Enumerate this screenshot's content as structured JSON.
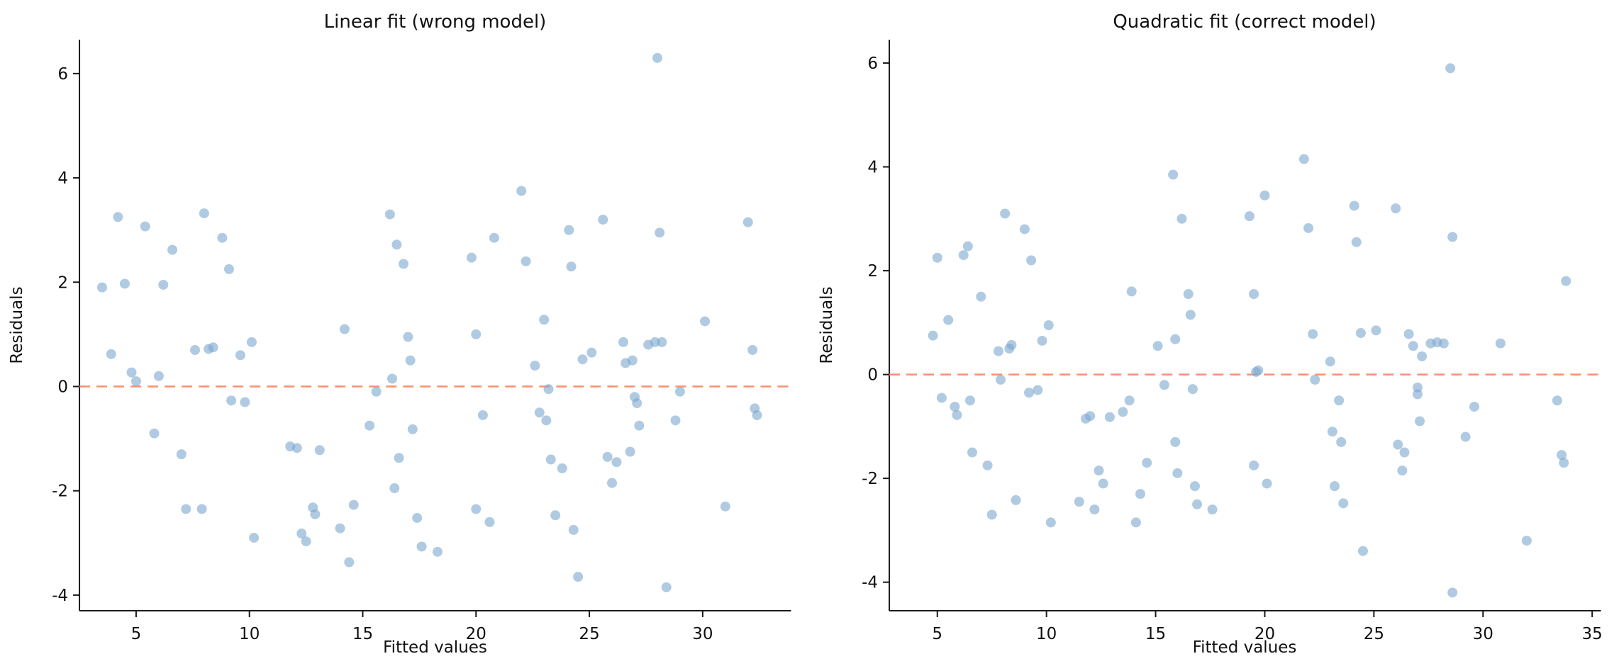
{
  "colors": {
    "background": "#ffffff",
    "point_fill": "#7ba6ce",
    "point_opacity": 0.6,
    "refline": "#fb8f6e",
    "spine": "#1a1a1a",
    "text": "#111111"
  },
  "chart_data": [
    {
      "type": "scatter",
      "title": "Linear fit (wrong model)",
      "xlabel": "Fitted values",
      "ylabel": "Residuals",
      "xlim": [
        2.5,
        33.9
      ],
      "ylim": [
        -4.3,
        6.65
      ],
      "xticks": [
        5,
        10,
        15,
        20,
        25,
        30
      ],
      "yticks": [
        -4,
        -2,
        0,
        2,
        4,
        6
      ],
      "refline_y": 0,
      "legend": null,
      "grid": false,
      "points": [
        [
          3.5,
          1.9
        ],
        [
          3.9,
          0.62
        ],
        [
          4.2,
          3.25
        ],
        [
          4.5,
          1.97
        ],
        [
          4.8,
          0.27
        ],
        [
          5.0,
          0.1
        ],
        [
          5.4,
          3.07
        ],
        [
          5.8,
          -0.9
        ],
        [
          6.0,
          0.2
        ],
        [
          6.2,
          1.95
        ],
        [
          6.6,
          2.62
        ],
        [
          7.0,
          -1.3
        ],
        [
          7.2,
          -2.35
        ],
        [
          7.6,
          0.7
        ],
        [
          7.9,
          -2.35
        ],
        [
          8.0,
          3.32
        ],
        [
          8.2,
          0.72
        ],
        [
          8.4,
          0.75
        ],
        [
          8.8,
          2.85
        ],
        [
          9.1,
          2.25
        ],
        [
          9.2,
          -0.27
        ],
        [
          9.6,
          0.6
        ],
        [
          9.8,
          -0.3
        ],
        [
          10.1,
          0.85
        ],
        [
          10.2,
          -2.9
        ],
        [
          11.8,
          -1.15
        ],
        [
          12.1,
          -1.18
        ],
        [
          12.3,
          -2.82
        ],
        [
          12.5,
          -2.97
        ],
        [
          12.8,
          -2.32
        ],
        [
          12.9,
          -2.45
        ],
        [
          13.1,
          -1.22
        ],
        [
          14.0,
          -2.72
        ],
        [
          14.2,
          1.1
        ],
        [
          14.4,
          -3.37
        ],
        [
          14.6,
          -2.27
        ],
        [
          15.3,
          -0.75
        ],
        [
          15.6,
          -0.1
        ],
        [
          16.2,
          3.3
        ],
        [
          16.3,
          0.15
        ],
        [
          16.4,
          -1.95
        ],
        [
          16.5,
          2.72
        ],
        [
          16.6,
          -1.37
        ],
        [
          16.8,
          2.35
        ],
        [
          17.0,
          0.95
        ],
        [
          17.1,
          0.5
        ],
        [
          17.2,
          -0.82
        ],
        [
          17.4,
          -2.52
        ],
        [
          17.6,
          -3.07
        ],
        [
          18.3,
          -3.17
        ],
        [
          19.8,
          2.47
        ],
        [
          20.0,
          1.0
        ],
        [
          20.0,
          -2.35
        ],
        [
          20.3,
          -0.55
        ],
        [
          20.6,
          -2.6
        ],
        [
          20.8,
          2.85
        ],
        [
          22.0,
          3.75
        ],
        [
          22.2,
          2.4
        ],
        [
          22.6,
          0.4
        ],
        [
          22.8,
          -0.5
        ],
        [
          23.0,
          1.28
        ],
        [
          23.1,
          -0.65
        ],
        [
          23.2,
          -0.05
        ],
        [
          23.3,
          -1.4
        ],
        [
          23.5,
          -2.47
        ],
        [
          23.8,
          -1.57
        ],
        [
          24.1,
          3.0
        ],
        [
          24.2,
          2.3
        ],
        [
          24.3,
          -2.75
        ],
        [
          24.5,
          -3.65
        ],
        [
          24.7,
          0.52
        ],
        [
          25.1,
          0.65
        ],
        [
          25.6,
          3.2
        ],
        [
          25.8,
          -1.35
        ],
        [
          26.0,
          -1.85
        ],
        [
          26.2,
          -1.45
        ],
        [
          26.5,
          0.85
        ],
        [
          26.6,
          0.45
        ],
        [
          26.8,
          -1.25
        ],
        [
          26.9,
          0.5
        ],
        [
          27.0,
          -0.2
        ],
        [
          27.1,
          -0.32
        ],
        [
          27.2,
          -0.75
        ],
        [
          27.6,
          0.8
        ],
        [
          27.9,
          0.85
        ],
        [
          28.0,
          6.3
        ],
        [
          28.1,
          2.95
        ],
        [
          28.2,
          0.85
        ],
        [
          28.4,
          -3.85
        ],
        [
          28.8,
          -0.65
        ],
        [
          29.0,
          -0.1
        ],
        [
          30.1,
          1.25
        ],
        [
          31.0,
          -2.3
        ],
        [
          32.0,
          3.15
        ],
        [
          32.2,
          0.7
        ],
        [
          32.3,
          -0.42
        ],
        [
          32.4,
          -0.55
        ]
      ]
    },
    {
      "type": "scatter",
      "title": "Quadratic fit (correct model)",
      "xlabel": "Fitted values",
      "ylabel": "Residuals",
      "xlim": [
        2.8,
        35.4
      ],
      "ylim": [
        -4.55,
        6.45
      ],
      "xticks": [
        5,
        10,
        15,
        20,
        25,
        30,
        35
      ],
      "yticks": [
        -4,
        -2,
        0,
        2,
        4,
        6
      ],
      "refline_y": 0,
      "legend": null,
      "grid": false,
      "points": [
        [
          4.8,
          0.75
        ],
        [
          5.0,
          2.25
        ],
        [
          5.2,
          -0.45
        ],
        [
          5.5,
          1.05
        ],
        [
          5.8,
          -0.62
        ],
        [
          5.9,
          -0.78
        ],
        [
          6.2,
          2.3
        ],
        [
          6.4,
          2.47
        ],
        [
          6.5,
          -0.5
        ],
        [
          6.6,
          -1.5
        ],
        [
          7.0,
          1.5
        ],
        [
          7.3,
          -1.75
        ],
        [
          7.5,
          -2.7
        ],
        [
          7.8,
          0.45
        ],
        [
          7.9,
          -0.1
        ],
        [
          8.1,
          3.1
        ],
        [
          8.3,
          0.5
        ],
        [
          8.4,
          0.57
        ],
        [
          8.6,
          -2.42
        ],
        [
          9.0,
          2.8
        ],
        [
          9.2,
          -0.35
        ],
        [
          9.3,
          2.2
        ],
        [
          9.6,
          -0.3
        ],
        [
          9.8,
          0.65
        ],
        [
          10.1,
          0.95
        ],
        [
          10.2,
          -2.85
        ],
        [
          11.5,
          -2.45
        ],
        [
          11.8,
          -0.85
        ],
        [
          12.0,
          -0.8
        ],
        [
          12.2,
          -2.6
        ],
        [
          12.4,
          -1.85
        ],
        [
          12.6,
          -2.1
        ],
        [
          12.9,
          -0.82
        ],
        [
          13.5,
          -0.72
        ],
        [
          13.8,
          -0.5
        ],
        [
          13.9,
          1.6
        ],
        [
          14.1,
          -2.85
        ],
        [
          14.3,
          -2.3
        ],
        [
          14.6,
          -1.7
        ],
        [
          15.1,
          0.55
        ],
        [
          15.4,
          -0.2
        ],
        [
          15.8,
          3.85
        ],
        [
          15.9,
          0.68
        ],
        [
          15.9,
          -1.3
        ],
        [
          16.0,
          -1.9
        ],
        [
          16.2,
          3.0
        ],
        [
          16.5,
          1.55
        ],
        [
          16.6,
          1.15
        ],
        [
          16.7,
          -0.28
        ],
        [
          16.8,
          -2.15
        ],
        [
          16.9,
          -2.5
        ],
        [
          17.6,
          -2.6
        ],
        [
          19.3,
          3.05
        ],
        [
          19.5,
          1.55
        ],
        [
          19.5,
          -1.75
        ],
        [
          19.6,
          0.05
        ],
        [
          19.7,
          0.08
        ],
        [
          20.0,
          3.45
        ],
        [
          20.1,
          -2.1
        ],
        [
          21.8,
          4.15
        ],
        [
          22.0,
          2.82
        ],
        [
          22.2,
          0.78
        ],
        [
          22.3,
          -0.1
        ],
        [
          23.0,
          0.25
        ],
        [
          23.1,
          -1.1
        ],
        [
          23.2,
          -2.15
        ],
        [
          23.4,
          -0.5
        ],
        [
          23.5,
          -1.3
        ],
        [
          23.6,
          -2.48
        ],
        [
          24.1,
          3.25
        ],
        [
          24.2,
          2.55
        ],
        [
          24.4,
          0.8
        ],
        [
          24.5,
          -3.4
        ],
        [
          25.1,
          0.85
        ],
        [
          26.0,
          3.2
        ],
        [
          26.1,
          -1.35
        ],
        [
          26.3,
          -1.85
        ],
        [
          26.4,
          -1.5
        ],
        [
          26.6,
          0.78
        ],
        [
          26.8,
          0.55
        ],
        [
          27.0,
          -0.25
        ],
        [
          27.0,
          -0.38
        ],
        [
          27.1,
          -0.9
        ],
        [
          27.2,
          0.35
        ],
        [
          27.6,
          0.6
        ],
        [
          27.9,
          0.62
        ],
        [
          28.2,
          0.6
        ],
        [
          28.5,
          5.9
        ],
        [
          28.6,
          2.65
        ],
        [
          28.6,
          -4.2
        ],
        [
          29.2,
          -1.2
        ],
        [
          29.6,
          -0.62
        ],
        [
          30.8,
          0.6
        ],
        [
          32.0,
          -3.2
        ],
        [
          33.4,
          -0.5
        ],
        [
          33.6,
          -1.55
        ],
        [
          33.7,
          -1.7
        ],
        [
          33.8,
          1.8
        ]
      ]
    }
  ]
}
